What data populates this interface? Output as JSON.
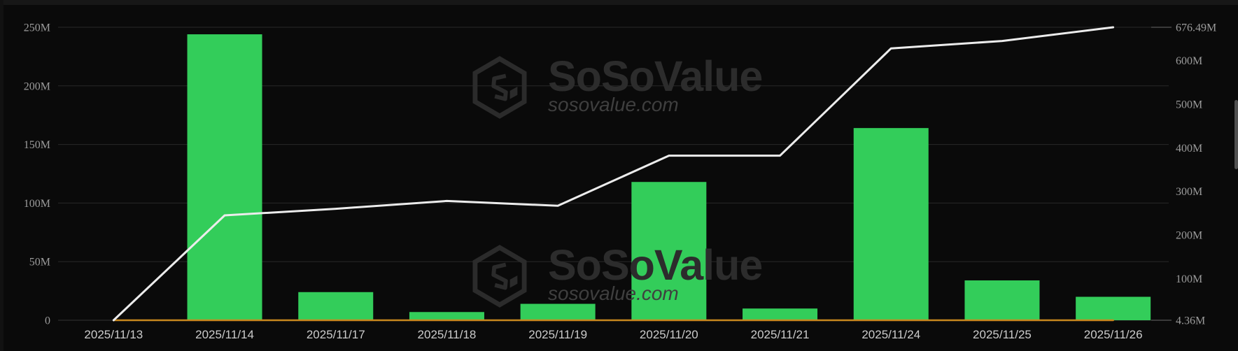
{
  "watermark": {
    "brand": "SoSoValue",
    "domain": "sosovalue.com"
  },
  "colors": {
    "background": "#0a0a0a",
    "bar_green": "#33cd5a",
    "line_white": "#ececec",
    "line_orange": "#c8881e",
    "grid": "#282828",
    "zero_line": "#343434",
    "axis_label": "#9c9c9c",
    "date_label": "#cbcbcb",
    "tick_connector": "#6a6a6a",
    "watermark": "#2c2c2c",
    "scrollbar": "#505050"
  },
  "chart_data": {
    "type": "bar",
    "categories": [
      "2025/11/13",
      "2025/11/14",
      "2025/11/17",
      "2025/11/18",
      "2025/11/19",
      "2025/11/20",
      "2025/11/21",
      "2025/11/24",
      "2025/11/25",
      "2025/11/26"
    ],
    "series": [
      {
        "name": "daily-flow-bars",
        "kind": "bar",
        "axis": "left",
        "color": "#33cd5a",
        "values": [
          0,
          244,
          24,
          7,
          14,
          118,
          10,
          164,
          34,
          20
        ]
      },
      {
        "name": "cumulative-white-line",
        "kind": "line",
        "axis": "right",
        "color": "#ececec",
        "width": 3,
        "values": [
          4.36,
          245,
          260,
          278,
          267,
          382,
          382,
          628,
          645,
          676.49
        ]
      },
      {
        "name": "flat-orange-line",
        "kind": "line",
        "axis": "right",
        "color": "#c8881e",
        "width": 2.5,
        "values": [
          4.36,
          4.36,
          4.36,
          4.36,
          4.36,
          4.36,
          4.36,
          4.36,
          4.36,
          4.36
        ]
      }
    ],
    "left_axis": {
      "tick_labels": [
        "0",
        "50M",
        "100M",
        "150M",
        "200M",
        "250M"
      ],
      "tick_values": [
        0,
        50,
        100,
        150,
        200,
        250
      ],
      "min": 0,
      "max": 250
    },
    "right_axis": {
      "tick_labels": [
        "676.49M",
        "600M",
        "500M",
        "400M",
        "300M",
        "200M",
        "100M",
        "4.36M"
      ],
      "tick_values": [
        676.49,
        600,
        500,
        400,
        300,
        200,
        100,
        4.36
      ],
      "min": 4.36,
      "max": 676.49
    },
    "grid": true,
    "legend": "none",
    "unit": "M"
  }
}
